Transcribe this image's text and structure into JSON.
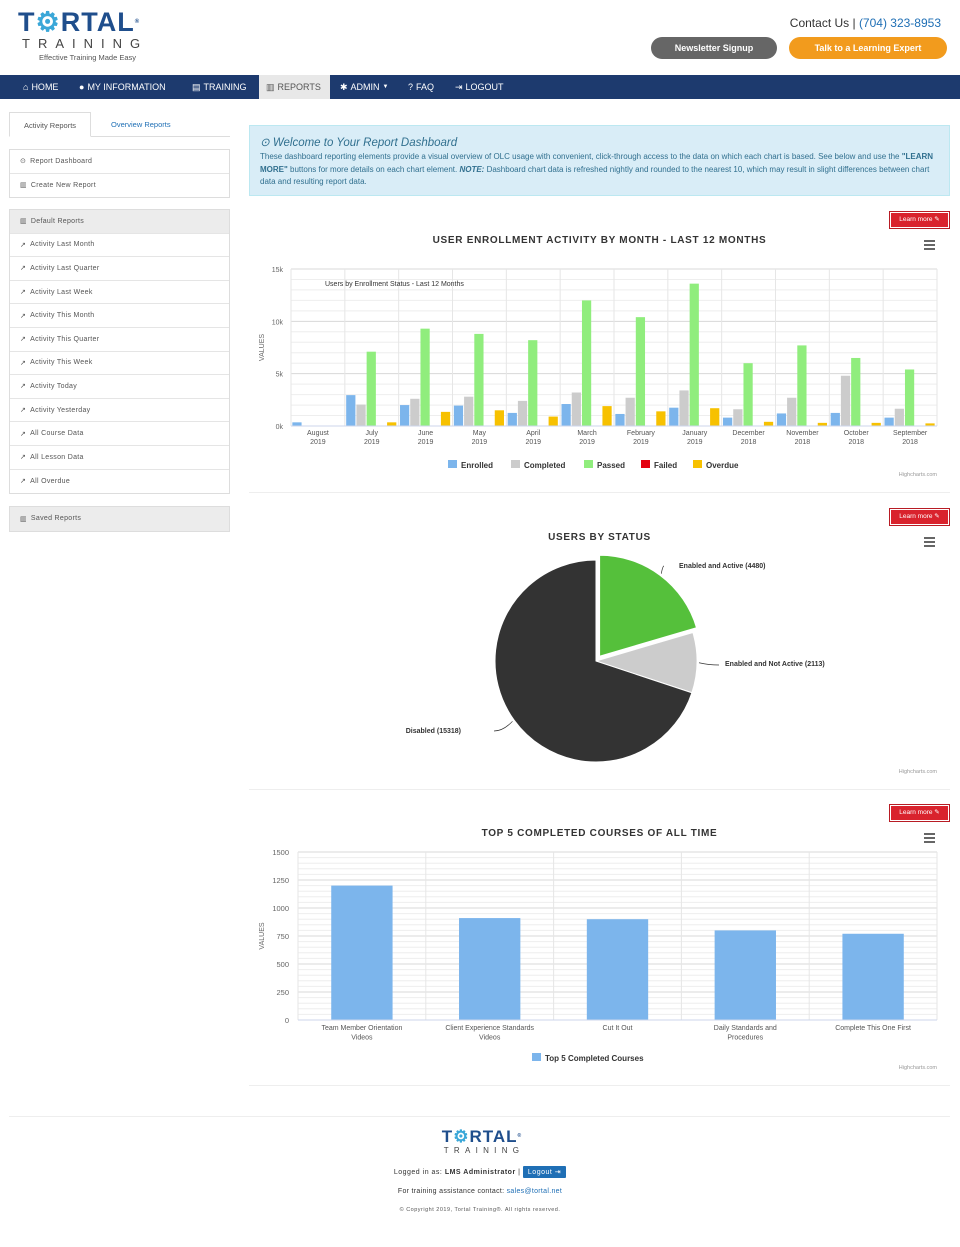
{
  "header": {
    "logo_main_1": "T",
    "logo_gear": "⚙",
    "logo_main_2": "RTAL",
    "logo_reg": "®",
    "logo_sub": "TRAINING",
    "tagline": "Effective Training Made Easy",
    "contact_label": "Contact Us | ",
    "phone": "(704) 323-8953",
    "newsletter_button": "Newsletter Signup",
    "expert_button": "Talk to a Learning Expert"
  },
  "nav": {
    "home": "HOME",
    "my_information": "MY INFORMATION",
    "training": "TRAINING",
    "reports": "REPORTS",
    "admin": "ADMIN",
    "faq": "FAQ",
    "logout": "LOGOUT"
  },
  "sidebar": {
    "tab_activity": "Activity Reports",
    "tab_overview": "Overview Reports",
    "top_items": [
      "Report Dashboard",
      "Create New Report"
    ],
    "default_head": "Default Reports",
    "default_items": [
      "Activity Last Month",
      "Activity Last Quarter",
      "Activity Last Week",
      "Activity This Month",
      "Activity This Quarter",
      "Activity This Week",
      "Activity Today",
      "Activity Yesterday",
      "All Course Data",
      "All Lesson Data",
      "All Overdue"
    ],
    "saved_head": "Saved Reports"
  },
  "welcome": {
    "title": "Welcome to Your Report Dashboard",
    "text_1": "These dashboard reporting elements provide a visual overview of OLC usage with convenient, click-through access to the data on which each chart is based. See below and use the ",
    "text_bold": "\"LEARN MORE\"",
    "text_2": " buttons for more details on each chart element. ",
    "text_note": "NOTE:",
    "text_3": " Dashboard chart data is refreshed nightly and rounded to the nearest 10, which may result in slight differences between chart data and resulting report data."
  },
  "learn_more": "Learn more",
  "credit": "Highcharts.com",
  "chart_data": [
    {
      "type": "bar",
      "title": "USER ENROLLMENT ACTIVITY BY MONTH - LAST 12 MONTHS",
      "subtitle": "Users by Enrollment Status - Last 12 Months",
      "ylabel": "VALUES",
      "ylim": [
        0,
        15000
      ],
      "yticks": [
        "0k",
        "5k",
        "10k",
        "15k"
      ],
      "categories": [
        "August 2019",
        "July 2019",
        "June 2019",
        "May 2019",
        "April 2019",
        "March 2019",
        "February 2019",
        "January 2019",
        "December 2018",
        "November 2018",
        "October 2018",
        "September 2018"
      ],
      "series": [
        {
          "name": "Enrolled",
          "color": "#7cb5ec",
          "values": [
            350,
            2950,
            2000,
            1950,
            1250,
            2100,
            1150,
            1750,
            800,
            1200,
            1250,
            800
          ]
        },
        {
          "name": "Completed",
          "color": "#cccccc",
          "values": [
            0,
            2050,
            2600,
            2800,
            2400,
            3200,
            2700,
            3400,
            1600,
            2700,
            4800,
            1650
          ]
        },
        {
          "name": "Passed",
          "color": "#90ed7d",
          "values": [
            0,
            7100,
            9300,
            8800,
            8200,
            12000,
            10400,
            13600,
            6000,
            7700,
            6500,
            5400
          ]
        },
        {
          "name": "Failed",
          "color": "#e4000f",
          "values": [
            0,
            0,
            0,
            0,
            0,
            0,
            0,
            0,
            0,
            0,
            0,
            0
          ]
        },
        {
          "name": "Overdue",
          "color": "#f7c100",
          "values": [
            0,
            350,
            1350,
            1500,
            900,
            1900,
            1400,
            1700,
            400,
            300,
            300,
            250
          ]
        }
      ]
    },
    {
      "type": "pie",
      "title": "USERS BY STATUS",
      "slices": [
        {
          "name": "Enabled and Active",
          "value": 4480,
          "label": "Enabled and Active (4480)",
          "color": "#55c03b"
        },
        {
          "name": "Enabled and Not Active",
          "value": 2113,
          "label": "Enabled and Not Active (2113)",
          "color": "#cccccc"
        },
        {
          "name": "Disabled",
          "value": 15318,
          "label": "Disabled (15318)",
          "color": "#333333"
        }
      ]
    },
    {
      "type": "bar",
      "title": "TOP 5 COMPLETED COURSES OF ALL TIME",
      "ylabel": "VALUES",
      "ylim": [
        0,
        1500
      ],
      "yticks": [
        "0",
        "250",
        "500",
        "750",
        "1000",
        "1250",
        "1500"
      ],
      "categories": [
        [
          "Team Member Orientation",
          "Videos"
        ],
        [
          "Client Experience Standards",
          "Videos"
        ],
        [
          "Cut It Out"
        ],
        [
          "Daily Standards and",
          "Procedures"
        ],
        [
          "Complete This One First"
        ]
      ],
      "series": [
        {
          "name": "Top 5 Completed Courses",
          "color": "#7cb5ec",
          "values": [
            1200,
            910,
            900,
            800,
            770
          ]
        }
      ]
    }
  ],
  "footer": {
    "logo_main_1": "T",
    "logo_gear": "⚙",
    "logo_main_2": "RTAL",
    "logo_reg": "®",
    "logo_sub": "TRAINING",
    "logged_in_label": "Logged in as: ",
    "user": "LMS Administrator",
    "sep": " | ",
    "logout": "Logout",
    "assist_label": "For training assistance contact: ",
    "email": "sales@tortal.net",
    "copyright": "© Copyright 2019, Tortal Training®. All rights reserved."
  }
}
